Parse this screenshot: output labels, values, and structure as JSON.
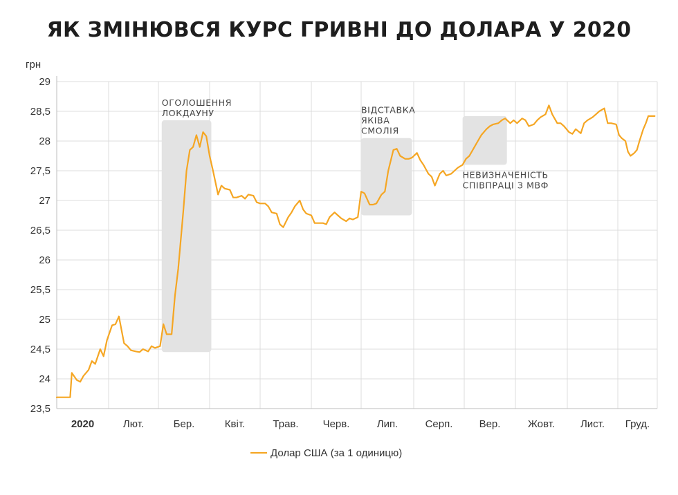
{
  "chart_data": {
    "type": "line",
    "title": "ЯК ЗМІНЮВСЯ КУРС ГРИВНІ ДО ДОЛАРА У 2020",
    "ylabel": "грн",
    "xlabel": "",
    "ylim": [
      23.5,
      29
    ],
    "yticks": [
      "29",
      "28,5",
      "28",
      "27,5",
      "27",
      "26,5",
      "26",
      "25,5",
      "25",
      "24,5",
      "24",
      "23,5"
    ],
    "ytick_values": [
      29,
      28.5,
      28,
      27.5,
      27,
      26.5,
      26,
      25.5,
      25,
      24.5,
      24,
      23.5
    ],
    "xticks": [
      "2020",
      "Лют.",
      "Бер.",
      "Квіт.",
      "Трав.",
      "Черв.",
      "Лип.",
      "Серп.",
      "Вер.",
      "Жовт.",
      "Лист.",
      "Груд."
    ],
    "grid": true,
    "legend_position": "bottom-center",
    "series": [
      {
        "name": "Долар США (за 1 одиницю)",
        "color": "#f5a623",
        "x": [
          "2020-01-01",
          "2020-01-06",
          "2020-01-09",
          "2020-01-10",
          "2020-01-13",
          "2020-01-15",
          "2020-01-17",
          "2020-01-20",
          "2020-01-22",
          "2020-01-24",
          "2020-01-27",
          "2020-01-29",
          "2020-01-31",
          "2020-02-03",
          "2020-02-05",
          "2020-02-07",
          "2020-02-10",
          "2020-02-12",
          "2020-02-14",
          "2020-02-17",
          "2020-02-19",
          "2020-02-21",
          "2020-02-24",
          "2020-02-26",
          "2020-02-28",
          "2020-03-02",
          "2020-03-04",
          "2020-03-06",
          "2020-03-09",
          "2020-03-11",
          "2020-03-13",
          "2020-03-16",
          "2020-03-18",
          "2020-03-20",
          "2020-03-22",
          "2020-03-24",
          "2020-03-26",
          "2020-03-28",
          "2020-03-30",
          "2020-04-01",
          "2020-04-03",
          "2020-04-06",
          "2020-04-08",
          "2020-04-10",
          "2020-04-13",
          "2020-04-15",
          "2020-04-17",
          "2020-04-20",
          "2020-04-22",
          "2020-04-24",
          "2020-04-27",
          "2020-04-29",
          "2020-05-01",
          "2020-05-04",
          "2020-05-06",
          "2020-05-08",
          "2020-05-11",
          "2020-05-13",
          "2020-05-15",
          "2020-05-18",
          "2020-05-20",
          "2020-05-22",
          "2020-05-25",
          "2020-05-27",
          "2020-05-29",
          "2020-06-01",
          "2020-06-03",
          "2020-06-05",
          "2020-06-08",
          "2020-06-10",
          "2020-06-12",
          "2020-06-15",
          "2020-06-17",
          "2020-06-19",
          "2020-06-22",
          "2020-06-24",
          "2020-06-26",
          "2020-06-29",
          "2020-07-01",
          "2020-07-03",
          "2020-07-06",
          "2020-07-08",
          "2020-07-10",
          "2020-07-13",
          "2020-07-15",
          "2020-07-17",
          "2020-07-20",
          "2020-07-22",
          "2020-07-24",
          "2020-07-27",
          "2020-07-29",
          "2020-07-31",
          "2020-08-03",
          "2020-08-05",
          "2020-08-07",
          "2020-08-10",
          "2020-08-12",
          "2020-08-14",
          "2020-08-17",
          "2020-08-19",
          "2020-08-21",
          "2020-08-24",
          "2020-08-26",
          "2020-08-28",
          "2020-08-31",
          "2020-09-02",
          "2020-09-04",
          "2020-09-07",
          "2020-09-09",
          "2020-09-11",
          "2020-09-14",
          "2020-09-16",
          "2020-09-18",
          "2020-09-21",
          "2020-09-23",
          "2020-09-25",
          "2020-09-28",
          "2020-09-30",
          "2020-10-02",
          "2020-10-05",
          "2020-10-07",
          "2020-10-09",
          "2020-10-12",
          "2020-10-14",
          "2020-10-16",
          "2020-10-19",
          "2020-10-21",
          "2020-10-23",
          "2020-10-26",
          "2020-10-28",
          "2020-10-30",
          "2020-11-02",
          "2020-11-04",
          "2020-11-06",
          "2020-11-09",
          "2020-11-11",
          "2020-11-13",
          "2020-11-16",
          "2020-11-18",
          "2020-11-20",
          "2020-11-23",
          "2020-11-25",
          "2020-11-27",
          "2020-11-30",
          "2020-12-02",
          "2020-12-04",
          "2020-12-07",
          "2020-12-09",
          "2020-12-11",
          "2020-12-14",
          "2020-12-16",
          "2020-12-18",
          "2020-12-21",
          "2020-12-23",
          "2020-12-25",
          "2020-12-28",
          "2020-12-30"
        ],
        "values": [
          23.69,
          23.69,
          23.69,
          24.1,
          23.98,
          23.95,
          24.05,
          24.15,
          24.3,
          24.25,
          24.5,
          24.38,
          24.65,
          24.9,
          24.92,
          25.05,
          24.6,
          24.55,
          24.48,
          24.46,
          24.45,
          24.5,
          24.46,
          24.55,
          24.52,
          24.55,
          24.92,
          24.75,
          24.75,
          25.4,
          25.85,
          26.8,
          27.5,
          27.85,
          27.9,
          28.1,
          27.9,
          28.15,
          28.08,
          27.75,
          27.5,
          27.1,
          27.25,
          27.2,
          27.18,
          27.05,
          27.05,
          27.08,
          27.03,
          27.1,
          27.08,
          26.97,
          26.95,
          26.95,
          26.9,
          26.8,
          26.78,
          26.6,
          26.55,
          26.72,
          26.8,
          26.9,
          27.0,
          26.85,
          26.78,
          26.75,
          26.62,
          26.62,
          26.62,
          26.6,
          26.72,
          26.8,
          26.75,
          26.7,
          26.65,
          26.7,
          26.68,
          26.72,
          27.15,
          27.12,
          26.93,
          26.93,
          26.95,
          27.1,
          27.15,
          27.5,
          27.85,
          27.87,
          27.75,
          27.7,
          27.7,
          27.72,
          27.8,
          27.68,
          27.6,
          27.45,
          27.4,
          27.25,
          27.45,
          27.5,
          27.42,
          27.45,
          27.5,
          27.55,
          27.6,
          27.7,
          27.75,
          27.9,
          28.0,
          28.1,
          28.2,
          28.25,
          28.28,
          28.3,
          28.35,
          28.38,
          28.3,
          28.35,
          28.3,
          28.38,
          28.35,
          28.25,
          28.28,
          28.35,
          28.4,
          28.45,
          28.6,
          28.45,
          28.3,
          28.3,
          28.25,
          28.15,
          28.12,
          28.2,
          28.13,
          28.3,
          28.35,
          28.4,
          28.45,
          28.5,
          28.55,
          28.3,
          28.3,
          28.28,
          28.1,
          28.05,
          28.0,
          27.82,
          27.75,
          27.8,
          27.85,
          28.0,
          28.2,
          28.3,
          28.42,
          28.42,
          28.42
        ]
      }
    ],
    "annotations": [
      {
        "lines": [
          "ОГОЛОШЕННЯ",
          "ЛОКДАУНУ"
        ],
        "x_range": [
          "2020-03-03",
          "2020-04-02"
        ],
        "y_range": [
          24.45,
          28.35
        ],
        "text_position": "above"
      },
      {
        "lines": [
          "ВІДСТАВКА",
          "ЯКІВА",
          "СМОЛІЯ"
        ],
        "x_range": [
          "2020-07-01",
          "2020-07-31"
        ],
        "y_range": [
          26.75,
          28.05
        ],
        "text_position": "above"
      },
      {
        "lines": [
          "НЕВИЗНАЧЕНІСТЬ",
          "СПІВПРАЦІ З МВФ"
        ],
        "x_range": [
          "2020-08-31",
          "2020-09-26"
        ],
        "y_range": [
          27.6,
          28.42
        ],
        "text_position": "below"
      }
    ]
  }
}
